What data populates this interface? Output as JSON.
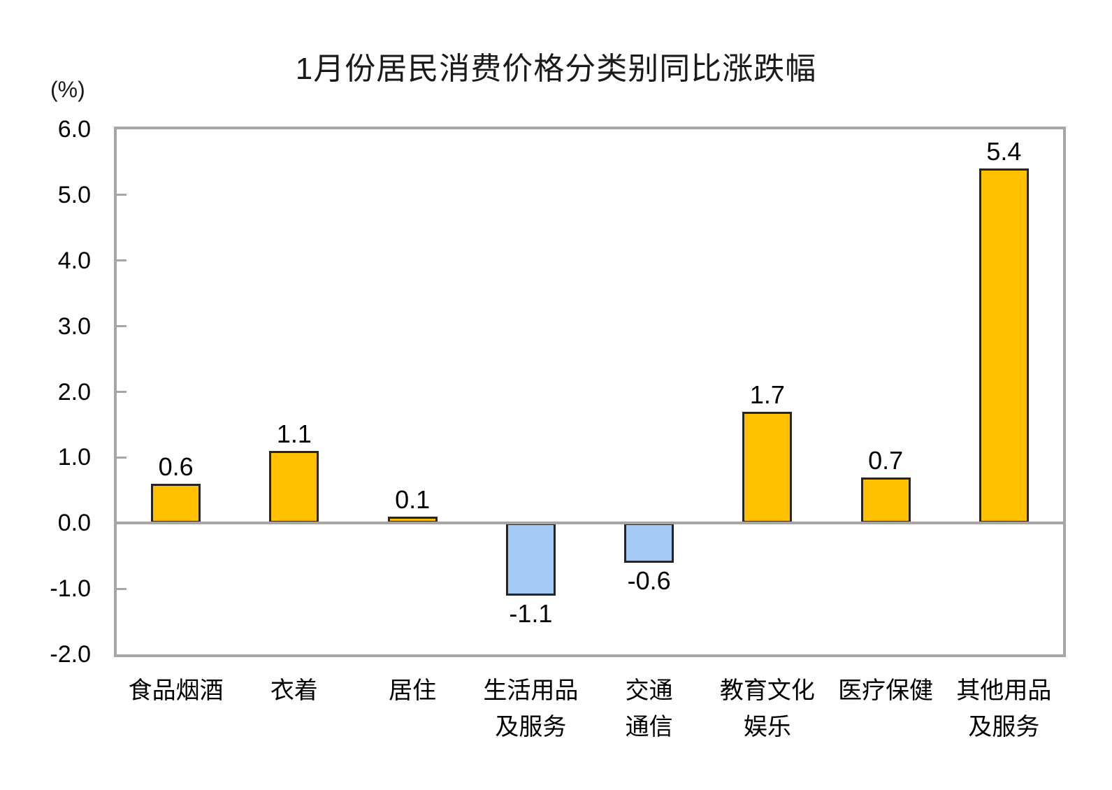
{
  "chart_data": {
    "type": "bar",
    "title": "1月份居民消费价格分类别同比涨跌幅",
    "ylabel": "(%)",
    "xlabel": "",
    "ylim": [
      -2.0,
      6.0
    ],
    "ytick_labels": [
      "6.0",
      "5.0",
      "4.0",
      "3.0",
      "2.0",
      "1.0",
      "0.0",
      "-1.0",
      "-2.0"
    ],
    "categories": [
      "食品烟酒",
      "衣着",
      "居住",
      "生活用品及服务",
      "交通通信",
      "教育文化娱乐",
      "医疗保健",
      "其他用品及服务"
    ],
    "category_lines": [
      [
        "食品烟酒"
      ],
      [
        "衣着"
      ],
      [
        "居住"
      ],
      [
        "生活用品",
        "及服务"
      ],
      [
        "交通",
        "通信"
      ],
      [
        "教育文化",
        "娱乐"
      ],
      [
        "医疗保健"
      ],
      [
        "其他用品",
        "及服务"
      ]
    ],
    "values": [
      0.6,
      1.1,
      0.1,
      -1.1,
      -0.6,
      1.7,
      0.7,
      5.4
    ],
    "value_labels": [
      "0.6",
      "1.1",
      "0.1",
      "-1.1",
      "-0.6",
      "1.7",
      "0.7",
      "5.4"
    ],
    "grid": false,
    "legend": "none",
    "colors": {
      "positive_fill": "#FFC000",
      "negative_fill": "#A3C9F4",
      "bar_border": "#262626",
      "axis_frame": "#A6A6A6",
      "text": "#000000"
    }
  }
}
